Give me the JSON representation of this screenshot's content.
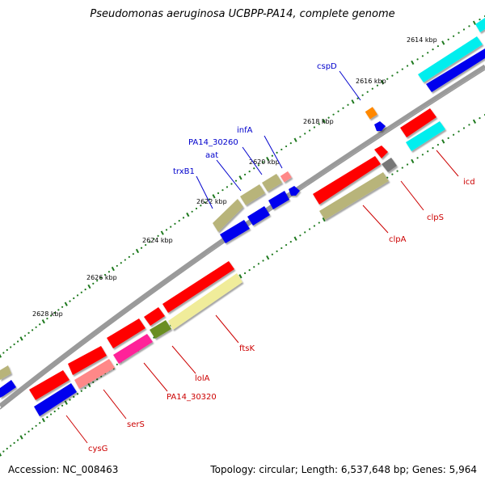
{
  "title": "Pseudomonas aeruginosa UCBPP-PA14, complete genome",
  "footer": {
    "accession": "Accession: NC_008463",
    "summary": "Topology: circular; Length: 6,537,648 bp; Genes: 5,964"
  },
  "ticks": [
    "2614 kbp",
    "2616 kbp",
    "2618 kbp",
    "2620 kbp",
    "2622 kbp",
    "2624 kbp",
    "2626 kbp",
    "2628 kbp"
  ],
  "gene_labels_top": [
    "cspD",
    "infA",
    "PA14_30260",
    "aat",
    "trxB1"
  ],
  "gene_labels_bottom": [
    "icd",
    "clpS",
    "clpA",
    "ftsK",
    "lolA",
    "PA14_30320",
    "serS",
    "cysG"
  ],
  "colors": {
    "backbone": "#888888",
    "tick": "#1f7a1f",
    "label_top": "#0000cc",
    "label_bottom": "#cc0000",
    "red": "#ff0000",
    "blue": "#0000ee",
    "khaki": "#b8b47a",
    "cyan": "#00eeee",
    "pink": "#ff8888",
    "magenta": "#ff2299",
    "olive": "#6b8e23",
    "lightyellow": "#f0ec9a",
    "orange": "#ff8800",
    "grey": "#777777"
  }
}
